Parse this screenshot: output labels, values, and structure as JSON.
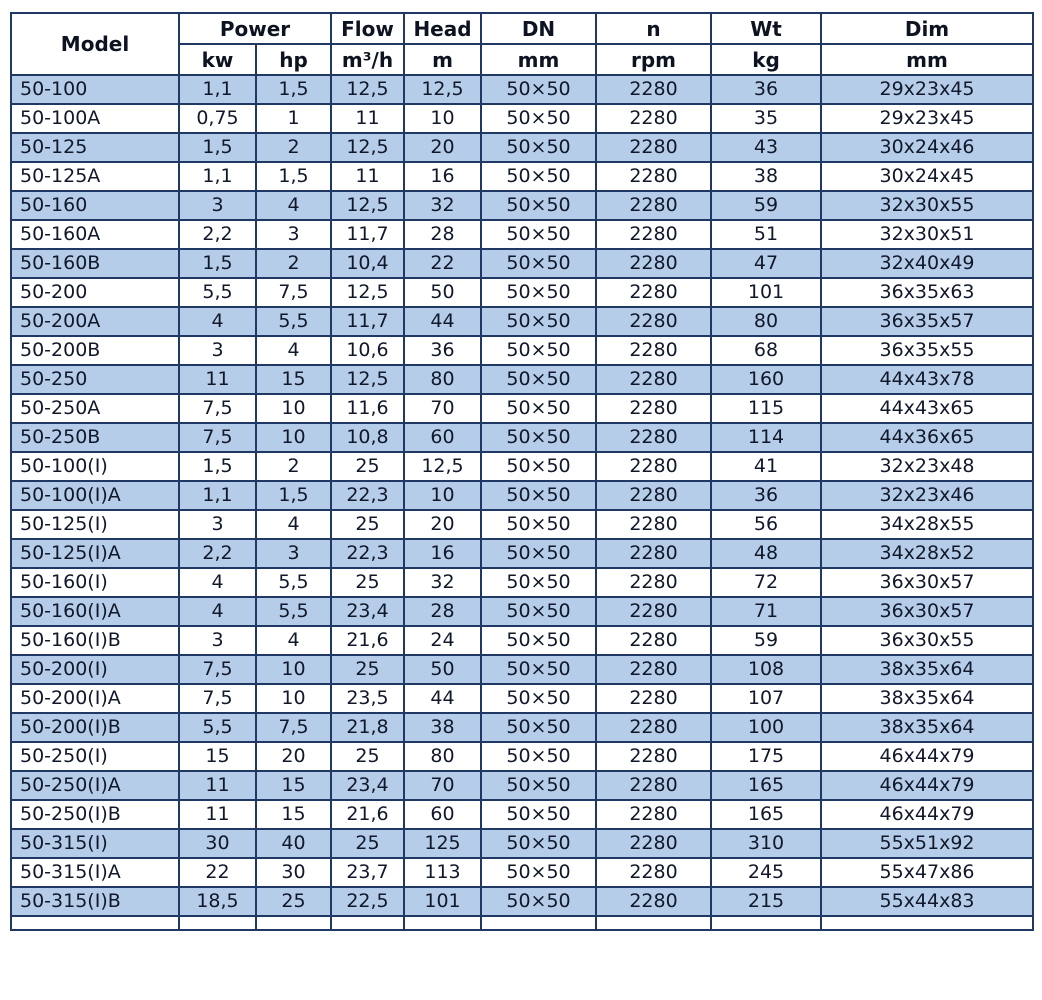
{
  "table": {
    "header_row1": {
      "model": "Model",
      "power": "Power",
      "flow": "Flow",
      "head": "Head",
      "dn": "DN",
      "n": "n",
      "wt": "Wt",
      "dim": "Dim"
    },
    "header_row2": {
      "kw": "kw",
      "hp": "hp",
      "flow_unit": "m³/h",
      "head_unit": "m",
      "dn_unit": "mm",
      "n_unit": "rpm",
      "wt_unit": "kg",
      "dim_unit": "mm"
    },
    "rows": [
      [
        "50-100",
        "1,1",
        "1,5",
        "12,5",
        "12,5",
        "50×50",
        "2280",
        "36",
        "29x23x45"
      ],
      [
        "50-100A",
        "0,75",
        "1",
        "11",
        "10",
        "50×50",
        "2280",
        "35",
        "29x23x45"
      ],
      [
        "50-125",
        "1,5",
        "2",
        "12,5",
        "20",
        "50×50",
        "2280",
        "43",
        "30x24x46"
      ],
      [
        "50-125A",
        "1,1",
        "1,5",
        "11",
        "16",
        "50×50",
        "2280",
        "38",
        "30x24x45"
      ],
      [
        "50-160",
        "3",
        "4",
        "12,5",
        "32",
        "50×50",
        "2280",
        "59",
        "32x30x55"
      ],
      [
        "50-160A",
        "2,2",
        "3",
        "11,7",
        "28",
        "50×50",
        "2280",
        "51",
        "32x30x51"
      ],
      [
        "50-160B",
        "1,5",
        "2",
        "10,4",
        "22",
        "50×50",
        "2280",
        "47",
        "32x40x49"
      ],
      [
        "50-200",
        "5,5",
        "7,5",
        "12,5",
        "50",
        "50×50",
        "2280",
        "101",
        "36x35x63"
      ],
      [
        "50-200A",
        "4",
        "5,5",
        "11,7",
        "44",
        "50×50",
        "2280",
        "80",
        "36x35x57"
      ],
      [
        "50-200B",
        "3",
        "4",
        "10,6",
        "36",
        "50×50",
        "2280",
        "68",
        "36x35x55"
      ],
      [
        "50-250",
        "11",
        "15",
        "12,5",
        "80",
        "50×50",
        "2280",
        "160",
        "44x43x78"
      ],
      [
        "50-250A",
        "7,5",
        "10",
        "11,6",
        "70",
        "50×50",
        "2280",
        "115",
        "44x43x65"
      ],
      [
        "50-250B",
        "7,5",
        "10",
        "10,8",
        "60",
        "50×50",
        "2280",
        "114",
        "44x36x65"
      ],
      [
        "50-100(I)",
        "1,5",
        "2",
        "25",
        "12,5",
        "50×50",
        "2280",
        "41",
        "32x23x48"
      ],
      [
        "50-100(I)A",
        "1,1",
        "1,5",
        "22,3",
        "10",
        "50×50",
        "2280",
        "36",
        "32x23x46"
      ],
      [
        "50-125(I)",
        "3",
        "4",
        "25",
        "20",
        "50×50",
        "2280",
        "56",
        "34x28x55"
      ],
      [
        "50-125(I)A",
        "2,2",
        "3",
        "22,3",
        "16",
        "50×50",
        "2280",
        "48",
        "34x28x52"
      ],
      [
        "50-160(I)",
        "4",
        "5,5",
        "25",
        "32",
        "50×50",
        "2280",
        "72",
        "36x30x57"
      ],
      [
        "50-160(I)A",
        "4",
        "5,5",
        "23,4",
        "28",
        "50×50",
        "2280",
        "71",
        "36x30x57"
      ],
      [
        "50-160(I)B",
        "3",
        "4",
        "21,6",
        "24",
        "50×50",
        "2280",
        "59",
        "36x30x55"
      ],
      [
        "50-200(I)",
        "7,5",
        "10",
        "25",
        "50",
        "50×50",
        "2280",
        "108",
        "38x35x64"
      ],
      [
        "50-200(I)A",
        "7,5",
        "10",
        "23,5",
        "44",
        "50×50",
        "2280",
        "107",
        "38x35x64"
      ],
      [
        "50-200(I)B",
        "5,5",
        "7,5",
        "21,8",
        "38",
        "50×50",
        "2280",
        "100",
        "38x35x64"
      ],
      [
        "50-250(I)",
        "15",
        "20",
        "25",
        "80",
        "50×50",
        "2280",
        "175",
        "46x44x79"
      ],
      [
        "50-250(I)A",
        "11",
        "15",
        "23,4",
        "70",
        "50×50",
        "2280",
        "165",
        "46x44x79"
      ],
      [
        "50-250(I)B",
        "11",
        "15",
        "21,6",
        "60",
        "50×50",
        "2280",
        "165",
        "46x44x79"
      ],
      [
        "50-315(I)",
        "30",
        "40",
        "25",
        "125",
        "50×50",
        "2280",
        "310",
        "55x51x92"
      ],
      [
        "50-315(I)A",
        "22",
        "30",
        "23,7",
        "113",
        "50×50",
        "2280",
        "245",
        "55x47x86"
      ],
      [
        "50-315(I)B",
        "18,5",
        "25",
        "22,5",
        "101",
        "50×50",
        "2280",
        "215",
        "55x44x83"
      ]
    ],
    "colors": {
      "row_highlight": "#b6cde9",
      "row_plain": "#ffffff",
      "border": "#1f3864",
      "text": "#10182a"
    }
  }
}
